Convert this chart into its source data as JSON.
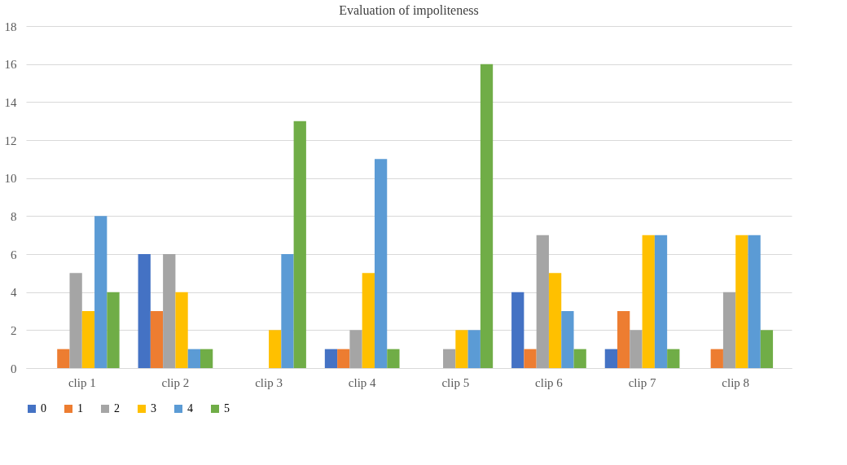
{
  "chart_data": {
    "type": "bar",
    "title": "Evaluation of impoliteness",
    "categories": [
      "clip 1",
      "clip 2",
      "clip 3",
      "clip 4",
      "clip 5",
      "clip 6",
      "clip 7",
      "clip 8"
    ],
    "series": [
      {
        "name": "0",
        "color": "#4472c4",
        "values": [
          0,
          6,
          0,
          1,
          0,
          4,
          1,
          0
        ]
      },
      {
        "name": "1",
        "color": "#ed7d31",
        "values": [
          1,
          3,
          0,
          1,
          0,
          1,
          3,
          1
        ]
      },
      {
        "name": "2",
        "color": "#a5a5a5",
        "values": [
          5,
          6,
          0,
          2,
          1,
          7,
          2,
          4
        ]
      },
      {
        "name": "3",
        "color": "#ffc000",
        "values": [
          3,
          4,
          2,
          5,
          2,
          5,
          7,
          7
        ]
      },
      {
        "name": "4",
        "color": "#5b9bd5",
        "values": [
          8,
          1,
          6,
          11,
          2,
          3,
          7,
          7
        ]
      },
      {
        "name": "5",
        "color": "#70ad47",
        "values": [
          4,
          1,
          13,
          1,
          16,
          1,
          1,
          2
        ]
      }
    ],
    "ylim": [
      0,
      18
    ],
    "yticks": [
      0,
      2,
      4,
      6,
      8,
      10,
      12,
      14,
      16,
      18
    ],
    "grid": "y",
    "legend": "bottom"
  }
}
